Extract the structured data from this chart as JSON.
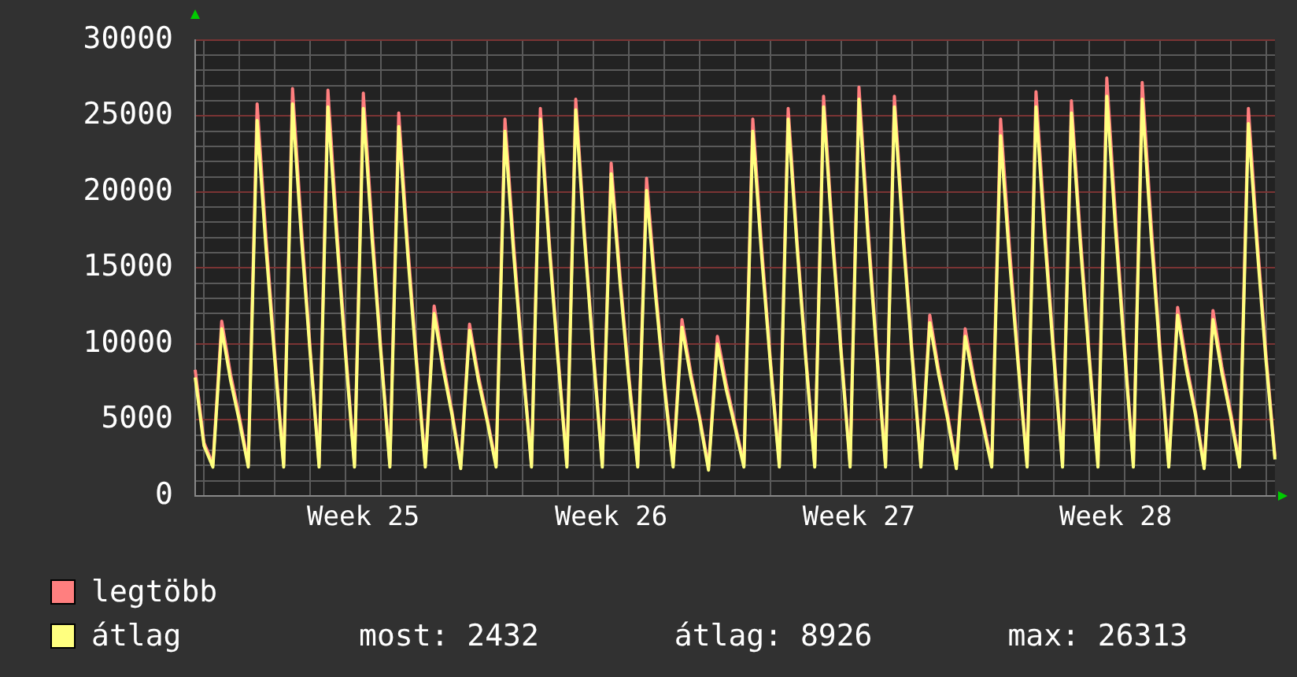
{
  "chart_data": {
    "type": "line",
    "grid": true,
    "legend": "bottom left",
    "marker": "none",
    "line_style": "solid",
    "categories": [
      null,
      null,
      null,
      null,
      null,
      null,
      null,
      null,
      null,
      null,
      null,
      null,
      null,
      null,
      null,
      null,
      null,
      null,
      null,
      "Week 25",
      null,
      null,
      null,
      null,
      null,
      null,
      null,
      null,
      null,
      null,
      null,
      null,
      null,
      null,
      null,
      null,
      null,
      null,
      null,
      null,
      null,
      null,
      null,
      null,
      null,
      null,
      null,
      "Week 26",
      null,
      null,
      null,
      null,
      null,
      null,
      null,
      null,
      null,
      null,
      null,
      null,
      null,
      null,
      null,
      null,
      null,
      null,
      null,
      null,
      null,
      null,
      null,
      null,
      null,
      null,
      null,
      "Week 27",
      null,
      null,
      null,
      null,
      null,
      null,
      null,
      null,
      null,
      null,
      null,
      null,
      null,
      null,
      null,
      null,
      null,
      null,
      null,
      null,
      null,
      null,
      null,
      null,
      null,
      null,
      null,
      null,
      "Week 28",
      null,
      null,
      null,
      null,
      null,
      null,
      null,
      null,
      null,
      null,
      null,
      null,
      null,
      null,
      null,
      null,
      null,
      null
    ],
    "ylim": [
      0,
      30000
    ],
    "yticks": [
      0,
      {
        "value": 1000,
        "label": null
      },
      {
        "value": 2000,
        "label": null
      },
      {
        "value": 3000,
        "label": null
      },
      {
        "value": 4000,
        "label": null
      },
      5000,
      {
        "value": 6000,
        "label": null
      },
      {
        "value": 7000,
        "label": null
      },
      {
        "value": 8000,
        "label": null
      },
      {
        "value": 9000,
        "label": null
      },
      10000,
      {
        "value": 11000,
        "label": null
      },
      {
        "value": 12000,
        "label": null
      },
      {
        "value": 13000,
        "label": null
      },
      {
        "value": 14000,
        "label": null
      },
      15000,
      {
        "value": 16000,
        "label": null
      },
      {
        "value": 17000,
        "label": null
      },
      {
        "value": 18000,
        "label": null
      },
      {
        "value": 19000,
        "label": null
      },
      20000,
      {
        "value": 21000,
        "label": null
      },
      {
        "value": 22000,
        "label": null
      },
      {
        "value": 23000,
        "label": null
      },
      {
        "value": 24000,
        "label": null
      },
      25000,
      {
        "value": 26000,
        "label": null
      },
      {
        "value": 27000,
        "label": null
      },
      {
        "value": 28000,
        "label": null
      },
      {
        "value": 29000,
        "label": null
      },
      30000
    ],
    "series": [
      {
        "name": "legtöbb",
        "color": "#ff7f7f",
        "values": [
          8300,
          3500,
          2100,
          11500,
          8000,
          5200,
          2100,
          25800,
          17000,
          9300,
          2100,
          26800,
          17700,
          9600,
          2100,
          26700,
          17600,
          9600,
          2100,
          26500,
          17500,
          9500,
          2100,
          25200,
          16600,
          9100,
          2100,
          12500,
          8800,
          5600,
          2000,
          11300,
          7900,
          5100,
          2100,
          24800,
          16400,
          8900,
          2100,
          25500,
          16800,
          9200,
          2100,
          26100,
          17200,
          9400,
          2100,
          21900,
          14500,
          7900,
          2100,
          20900,
          13800,
          7500,
          2100,
          11600,
          8100,
          5200,
          1900,
          10500,
          7400,
          4700,
          2100,
          24800,
          16400,
          8900,
          2100,
          25500,
          16800,
          9200,
          2100,
          26300,
          17400,
          9500,
          2100,
          26900,
          17800,
          9700,
          2100,
          26300,
          17400,
          9500,
          2100,
          11900,
          8300,
          5400,
          2000,
          11000,
          7700,
          5000,
          2100,
          24800,
          16400,
          8900,
          2100,
          26600,
          17600,
          9600,
          2100,
          26000,
          17200,
          9400,
          2100,
          27500,
          18200,
          9900,
          2100,
          27200,
          18000,
          9800,
          2100,
          12400,
          8700,
          5600,
          2000,
          12200,
          8500,
          5500,
          2100,
          25500,
          16800,
          9200,
          2600
        ]
      },
      {
        "name": "átlag",
        "color": "#ffff7f",
        "values": [
          7800,
          3300,
          1900,
          11000,
          7600,
          4900,
          1900,
          24700,
          16300,
          8900,
          1900,
          25800,
          17000,
          9300,
          1900,
          25600,
          16900,
          9200,
          1900,
          25500,
          16800,
          9200,
          1900,
          24300,
          16000,
          8700,
          1900,
          12000,
          8400,
          5400,
          1800,
          10900,
          7600,
          4900,
          1900,
          24000,
          15800,
          8600,
          1900,
          24800,
          16400,
          8900,
          1900,
          25400,
          16800,
          9100,
          1900,
          21200,
          14000,
          7600,
          1900,
          20100,
          13300,
          7200,
          1900,
          11100,
          7800,
          5000,
          1700,
          10000,
          7000,
          4500,
          1900,
          24000,
          15800,
          8600,
          1900,
          24800,
          16400,
          8900,
          1900,
          25600,
          16900,
          9200,
          1900,
          26100,
          17200,
          9400,
          1900,
          25600,
          16900,
          9200,
          1900,
          11400,
          8000,
          5100,
          1800,
          10500,
          7400,
          4700,
          1900,
          23700,
          15600,
          8500,
          1900,
          25600,
          16900,
          9200,
          1900,
          25200,
          16600,
          9100,
          1900,
          26300,
          17400,
          9500,
          1900,
          26100,
          17200,
          9400,
          1900,
          11900,
          8300,
          5400,
          1800,
          11600,
          8100,
          5200,
          1900,
          24500,
          16200,
          8800,
          2400
        ]
      }
    ],
    "annotations": [
      "most: 2432",
      "átlag: 8926",
      "max: 26313"
    ]
  }
}
